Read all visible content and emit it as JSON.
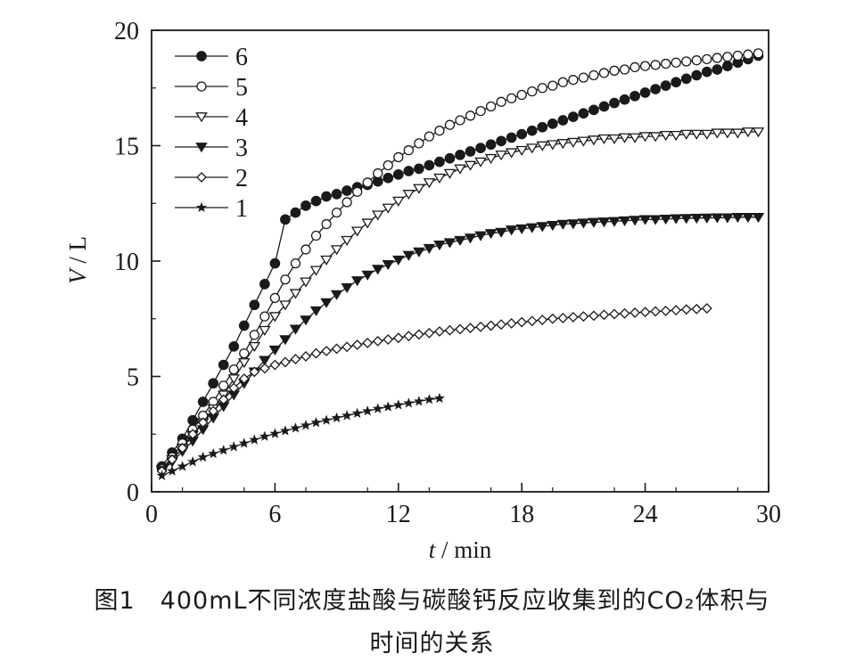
{
  "caption": {
    "line1": "图1　400mL不同浓度盐酸与碳酸钙反应收集到的CO₂体积与",
    "line2": "时间的关系"
  },
  "chart_data": {
    "type": "line",
    "xlabel": "t / min",
    "ylabel": "V / L",
    "xlim": [
      0,
      30
    ],
    "ylim": [
      0,
      20
    ],
    "xticks": [
      0,
      6,
      12,
      18,
      24,
      30
    ],
    "yticks": [
      0,
      5,
      10,
      15,
      20
    ],
    "grid": false,
    "legend": "top-left",
    "series": [
      {
        "name": "6",
        "marker": "circle-filled",
        "x": [
          0.5,
          1,
          1.5,
          2,
          2.5,
          3,
          3.5,
          4,
          4.5,
          5,
          5.5,
          6,
          6.5,
          7,
          7.5,
          8,
          8.5,
          9,
          9.5,
          10,
          10.5,
          11,
          11.5,
          12,
          12.5,
          13,
          13.5,
          14,
          14.5,
          15,
          15.5,
          16,
          16.5,
          17,
          17.5,
          18,
          18.5,
          19,
          19.5,
          20,
          20.5,
          21,
          21.5,
          22,
          22.5,
          23,
          23.5,
          24,
          24.5,
          25,
          25.5,
          26,
          26.5,
          27,
          27.5,
          28,
          28.5,
          29,
          29.5
        ],
        "y": [
          1.1,
          1.7,
          2.3,
          3.1,
          3.9,
          4.7,
          5.5,
          6.3,
          7.2,
          8.1,
          9.0,
          9.9,
          11.8,
          12.1,
          12.4,
          12.6,
          12.8,
          12.9,
          13.05,
          13.2,
          13.3,
          13.45,
          13.6,
          13.75,
          13.9,
          14.0,
          14.15,
          14.3,
          14.45,
          14.6,
          14.75,
          14.9,
          15.05,
          15.2,
          15.35,
          15.5,
          15.65,
          15.8,
          15.95,
          16.1,
          16.25,
          16.4,
          16.55,
          16.7,
          16.85,
          17.0,
          17.15,
          17.3,
          17.45,
          17.6,
          17.75,
          17.9,
          18.05,
          18.2,
          18.3,
          18.45,
          18.6,
          18.75,
          18.9
        ]
      },
      {
        "name": "5",
        "marker": "circle-open",
        "x": [
          0.5,
          1,
          1.5,
          2,
          2.5,
          3,
          3.5,
          4,
          4.5,
          5,
          5.5,
          6,
          6.5,
          7,
          7.5,
          8,
          8.5,
          9,
          9.5,
          10,
          10.5,
          11,
          11.5,
          12,
          12.5,
          13,
          13.5,
          14,
          14.5,
          15,
          15.5,
          16,
          16.5,
          17,
          17.5,
          18,
          18.5,
          19,
          19.5,
          20,
          20.5,
          21,
          21.5,
          22,
          22.5,
          23,
          23.5,
          24,
          24.5,
          25,
          25.5,
          26,
          26.5,
          27,
          27.5,
          28,
          28.5,
          29,
          29.5
        ],
        "y": [
          1.0,
          1.5,
          2.1,
          2.7,
          3.3,
          3.9,
          4.6,
          5.3,
          6.0,
          6.8,
          7.6,
          8.4,
          9.2,
          9.9,
          10.5,
          11.1,
          11.6,
          12.1,
          12.55,
          13.0,
          13.4,
          13.8,
          14.15,
          14.5,
          14.8,
          15.1,
          15.4,
          15.65,
          15.9,
          16.1,
          16.3,
          16.5,
          16.7,
          16.9,
          17.05,
          17.2,
          17.35,
          17.5,
          17.6,
          17.75,
          17.85,
          17.95,
          18.05,
          18.15,
          18.25,
          18.3,
          18.4,
          18.45,
          18.5,
          18.55,
          18.6,
          18.65,
          18.7,
          18.75,
          18.8,
          18.85,
          18.9,
          18.95,
          19.0
        ]
      },
      {
        "name": "4",
        "marker": "triangle-down-open",
        "x": [
          0.5,
          1,
          1.5,
          2,
          2.5,
          3,
          3.5,
          4,
          4.5,
          5,
          5.5,
          6,
          6.5,
          7,
          7.5,
          8,
          8.5,
          9,
          9.5,
          10,
          10.5,
          11,
          11.5,
          12,
          12.5,
          13,
          13.5,
          14,
          14.5,
          15,
          15.5,
          16,
          16.5,
          17,
          17.5,
          18,
          18.5,
          19,
          19.5,
          20,
          20.5,
          21,
          21.5,
          22,
          22.5,
          23,
          23.5,
          24,
          24.5,
          25,
          25.5,
          26,
          26.5,
          27,
          27.5,
          28,
          28.5,
          29,
          29.5
        ],
        "y": [
          0.95,
          1.4,
          1.9,
          2.45,
          3.0,
          3.6,
          4.2,
          4.9,
          5.6,
          6.3,
          7.0,
          7.6,
          8.1,
          8.6,
          9.1,
          9.6,
          10.05,
          10.5,
          10.9,
          11.3,
          11.65,
          12.0,
          12.3,
          12.6,
          12.9,
          13.15,
          13.4,
          13.6,
          13.8,
          14.0,
          14.15,
          14.3,
          14.45,
          14.6,
          14.7,
          14.8,
          14.9,
          15.0,
          15.05,
          15.1,
          15.15,
          15.2,
          15.25,
          15.3,
          15.3,
          15.35,
          15.35,
          15.4,
          15.4,
          15.45,
          15.45,
          15.5,
          15.5,
          15.5,
          15.55,
          15.55,
          15.55,
          15.6,
          15.6
        ]
      },
      {
        "name": "3",
        "marker": "triangle-down-filled",
        "x": [
          0.5,
          1,
          1.5,
          2,
          2.5,
          3,
          3.5,
          4,
          4.5,
          5,
          5.5,
          6,
          6.5,
          7,
          7.5,
          8,
          8.5,
          9,
          9.5,
          10,
          10.5,
          11,
          11.5,
          12,
          12.5,
          13,
          13.5,
          14,
          14.5,
          15,
          15.5,
          16,
          16.5,
          17,
          17.5,
          18,
          18.5,
          19,
          19.5,
          20,
          20.5,
          21,
          21.5,
          22,
          22.5,
          23,
          23.5,
          24,
          24.5,
          25,
          25.5,
          26,
          26.5,
          27,
          27.5,
          28,
          28.5,
          29,
          29.5
        ],
        "y": [
          0.9,
          1.3,
          1.75,
          2.2,
          2.7,
          3.2,
          3.7,
          4.2,
          4.7,
          5.2,
          5.7,
          6.15,
          6.6,
          7.05,
          7.45,
          7.85,
          8.2,
          8.55,
          8.85,
          9.15,
          9.4,
          9.65,
          9.85,
          10.05,
          10.25,
          10.4,
          10.55,
          10.7,
          10.8,
          10.9,
          11.0,
          11.1,
          11.2,
          11.25,
          11.35,
          11.4,
          11.45,
          11.5,
          11.55,
          11.6,
          11.62,
          11.65,
          11.68,
          11.7,
          11.72,
          11.75,
          11.77,
          11.8,
          11.8,
          11.82,
          11.84,
          11.85,
          11.86,
          11.87,
          11.88,
          11.88,
          11.9,
          11.9,
          11.9
        ]
      },
      {
        "name": "2",
        "marker": "diamond-open",
        "x": [
          0.5,
          1,
          1.5,
          2,
          2.5,
          3,
          3.5,
          4,
          4.5,
          5,
          5.5,
          6,
          6.5,
          7,
          7.5,
          8,
          8.5,
          9,
          9.5,
          10,
          10.5,
          11,
          11.5,
          12,
          12.5,
          13,
          13.5,
          14,
          14.5,
          15,
          15.5,
          16,
          16.5,
          17,
          17.5,
          18,
          18.5,
          19,
          19.5,
          20,
          20.5,
          21,
          21.5,
          22,
          22.5,
          23,
          23.5,
          24,
          24.5,
          25,
          25.5,
          26,
          26.5,
          27
        ],
        "y": [
          0.9,
          1.4,
          1.9,
          2.5,
          3.0,
          3.5,
          4.0,
          4.5,
          4.9,
          5.2,
          5.35,
          5.5,
          5.62,
          5.75,
          5.87,
          6.0,
          6.1,
          6.2,
          6.28,
          6.37,
          6.45,
          6.53,
          6.6,
          6.67,
          6.75,
          6.82,
          6.88,
          6.95,
          7.0,
          7.05,
          7.1,
          7.15,
          7.2,
          7.25,
          7.3,
          7.35,
          7.4,
          7.45,
          7.5,
          7.53,
          7.57,
          7.6,
          7.63,
          7.67,
          7.7,
          7.73,
          7.76,
          7.79,
          7.82,
          7.84,
          7.87,
          7.9,
          7.92,
          7.95
        ]
      },
      {
        "name": "1",
        "marker": "star-filled",
        "x": [
          0.5,
          1,
          1.5,
          2,
          2.5,
          3,
          3.5,
          4,
          4.5,
          5,
          5.5,
          6,
          6.5,
          7,
          7.5,
          8,
          8.5,
          9,
          9.5,
          10,
          10.5,
          11,
          11.5,
          12,
          12.5,
          13,
          13.5,
          14
        ],
        "y": [
          0.7,
          0.9,
          1.1,
          1.3,
          1.5,
          1.65,
          1.8,
          1.95,
          2.1,
          2.25,
          2.4,
          2.52,
          2.64,
          2.76,
          2.88,
          3.0,
          3.1,
          3.2,
          3.3,
          3.4,
          3.5,
          3.6,
          3.68,
          3.76,
          3.84,
          3.92,
          4.0,
          4.05
        ]
      }
    ]
  }
}
